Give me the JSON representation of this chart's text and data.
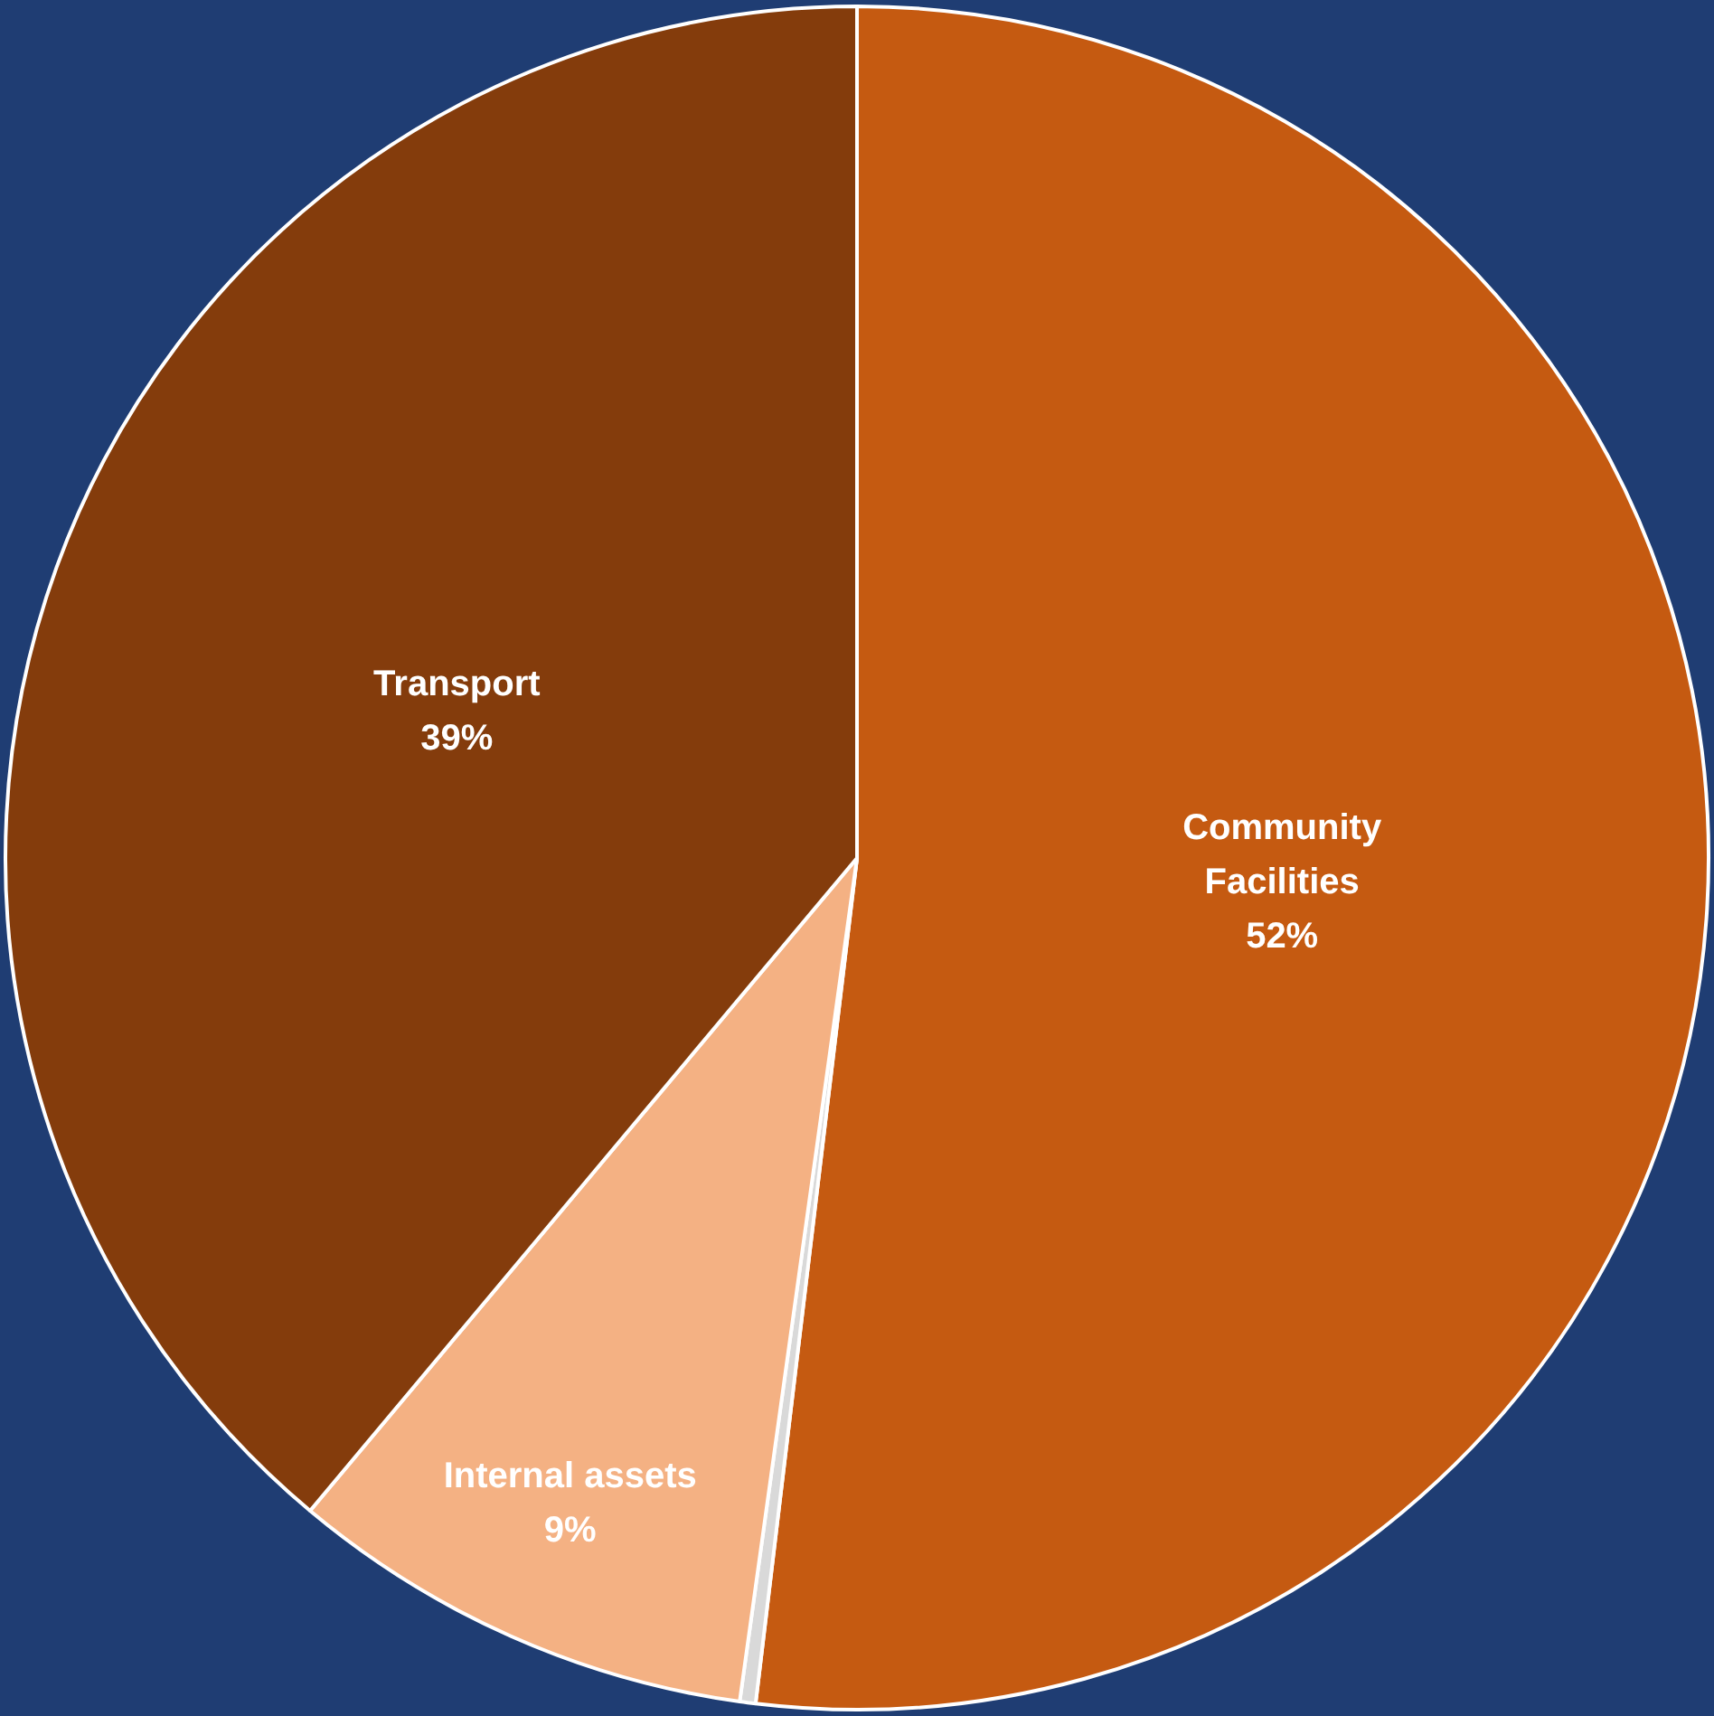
{
  "chart_data": {
    "type": "pie",
    "categories": [
      "Community Facilities",
      null,
      "Internal assets",
      "Transport"
    ],
    "values": [
      51.9,
      0.3,
      8.9,
      38.9
    ],
    "value_labels": [
      "52%",
      null,
      "9%",
      "39%"
    ],
    "colors": [
      "#c55a11",
      "#d9d9d9",
      "#f4b183",
      "#843c0c"
    ],
    "legend": false
  }
}
